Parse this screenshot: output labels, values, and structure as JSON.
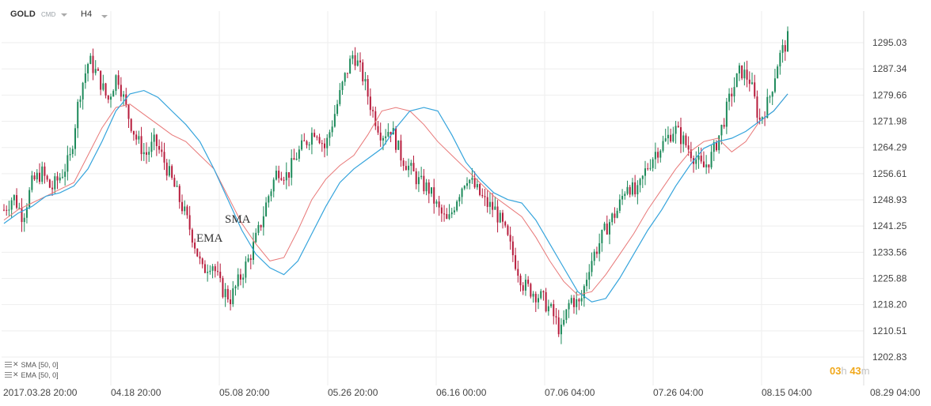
{
  "toolbar": {
    "symbol": "GOLD",
    "symbol_type": "CMD",
    "timeframe": "H4"
  },
  "colors": {
    "up_candle": "#1d8a5a",
    "down_candle": "#b71c3c",
    "sma_line": "#35a4dc",
    "ema_line": "#e87878",
    "grid": "#eeeeee",
    "axis_text": "#444444",
    "timer_accent": "#f0a81c"
  },
  "icons": {
    "legend_menu": "hamburger-icon",
    "legend_remove": "close-icon",
    "dropdown": "chevron-down-icon"
  },
  "indicators": [
    {
      "name": "SMA",
      "params": "[50,  0]"
    },
    {
      "name": "EMA",
      "params": "[50,  0]"
    }
  ],
  "annotations": {
    "sma_text": "SMA",
    "ema_text": "EMA"
  },
  "countdown": {
    "hours": "03",
    "hours_unit": "h",
    "minutes": "43",
    "minutes_unit": "m"
  },
  "chart_data": {
    "type": "candlestick",
    "ylim": [
      1202.83,
      1300.0
    ],
    "y_ticks": [
      "1295.03",
      "1287.34",
      "1279.66",
      "1271.98",
      "1264.29",
      "1256.61",
      "1248.93",
      "1241.25",
      "1233.56",
      "1225.88",
      "1218.20",
      "1210.51",
      "1202.83"
    ],
    "x_ticks": [
      "2017.03.28  20:00",
      "04.18  20:00",
      "05.08  20:00",
      "05.26  20:00",
      "06.16  00:00",
      "07.06  04:00",
      "07.26  04:00",
      "08.15  04:00",
      "08.29  04:00"
    ],
    "close_path": [
      1246,
      1250,
      1244,
      1254,
      1257,
      1252,
      1256,
      1261,
      1280,
      1290,
      1285,
      1278,
      1286,
      1275,
      1267,
      1262,
      1266,
      1260,
      1253,
      1246,
      1238,
      1228,
      1231,
      1223,
      1220,
      1226,
      1232,
      1240,
      1250,
      1258,
      1256,
      1262,
      1266,
      1270,
      1264,
      1274,
      1284,
      1292,
      1285,
      1275,
      1268,
      1270,
      1262,
      1258,
      1254,
      1252,
      1246,
      1242,
      1250,
      1256,
      1252,
      1248,
      1246,
      1240,
      1232,
      1224,
      1222,
      1220,
      1216,
      1210,
      1220,
      1218,
      1230,
      1236,
      1242,
      1246,
      1254,
      1250,
      1258,
      1263,
      1266,
      1270,
      1266,
      1262,
      1258,
      1262,
      1270,
      1280,
      1287,
      1284,
      1272,
      1278,
      1290,
      1296
    ],
    "ema_line": [
      1243,
      1246,
      1248,
      1250,
      1252,
      1254,
      1262,
      1270,
      1276,
      1277,
      1274,
      1271,
      1268,
      1266,
      1262,
      1258,
      1250,
      1242,
      1236,
      1231,
      1232,
      1240,
      1249,
      1255,
      1259,
      1262,
      1268,
      1275,
      1276,
      1275,
      1271,
      1266,
      1262,
      1258,
      1254,
      1250,
      1247,
      1244,
      1238,
      1231,
      1225,
      1221,
      1222,
      1227,
      1233,
      1239,
      1246,
      1252,
      1258,
      1263,
      1266,
      1267,
      1263,
      1266,
      1272,
      1275,
      1280
    ],
    "sma_line": [
      1242,
      1245,
      1247,
      1250,
      1251,
      1253,
      1258,
      1266,
      1275,
      1280,
      1281,
      1279,
      1275,
      1271,
      1266,
      1258,
      1249,
      1240,
      1233,
      1229,
      1227,
      1231,
      1239,
      1247,
      1254,
      1258,
      1261,
      1264,
      1270,
      1275,
      1276,
      1275,
      1268,
      1260,
      1255,
      1251,
      1249,
      1248,
      1243,
      1236,
      1229,
      1222,
      1219,
      1220,
      1226,
      1233,
      1240,
      1246,
      1253,
      1259,
      1264,
      1266,
      1267,
      1269,
      1272,
      1275,
      1280
    ]
  }
}
